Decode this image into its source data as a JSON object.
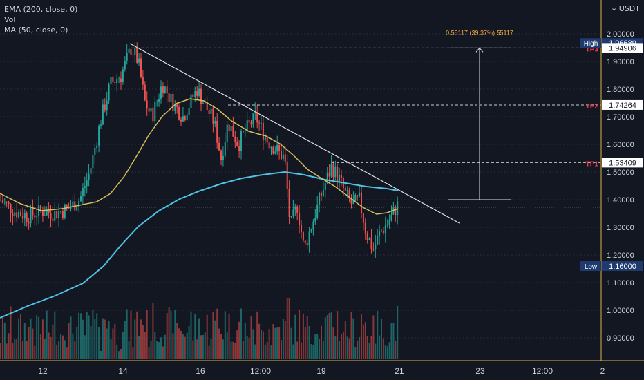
{
  "legend": {
    "ema": "EMA (200, close, 0)",
    "vol": "Vol",
    "ma": "MA (50, close, 0)"
  },
  "currency": "USDT",
  "chart_data": {
    "type": "candlestick",
    "y_ticks": [
      "0.90000",
      "1.00000",
      "1.10000",
      "1.20000",
      "1.30000",
      "1.40000",
      "1.50000",
      "1.60000",
      "1.70000",
      "1.80000",
      "1.90000",
      "2.00000"
    ],
    "x_ticks": [
      "12",
      "14",
      "16",
      "12:00",
      "19",
      "21",
      "23",
      "12:00",
      "2"
    ],
    "ylim": [
      0.85,
      2.06
    ],
    "price_labels": [
      {
        "prefix": "High",
        "value": "1.96689",
        "price": 1.96689,
        "color": "#1e3a6e"
      },
      {
        "prefix": "TP3",
        "value": "1.94906",
        "price": 1.94906,
        "color": "#ffffff"
      },
      {
        "prefix": "TP2",
        "value": "1.74264",
        "price": 1.74264,
        "color": "#ffffff"
      },
      {
        "prefix": "TP1",
        "value": "1.53409",
        "price": 1.53409,
        "color": "#ffffff"
      },
      {
        "prefix": "Low",
        "value": "1.16000",
        "price": 1.16,
        "color": "#1e3a6e"
      }
    ],
    "measure_label": "0.55117 (39.37%) 55117",
    "current_price": 1.373,
    "colors": {
      "up": "#26a69a",
      "down": "#ef5350",
      "ema": "#4fc3e5",
      "ma": "#d4bf5a",
      "tp": "#f23645"
    }
  }
}
